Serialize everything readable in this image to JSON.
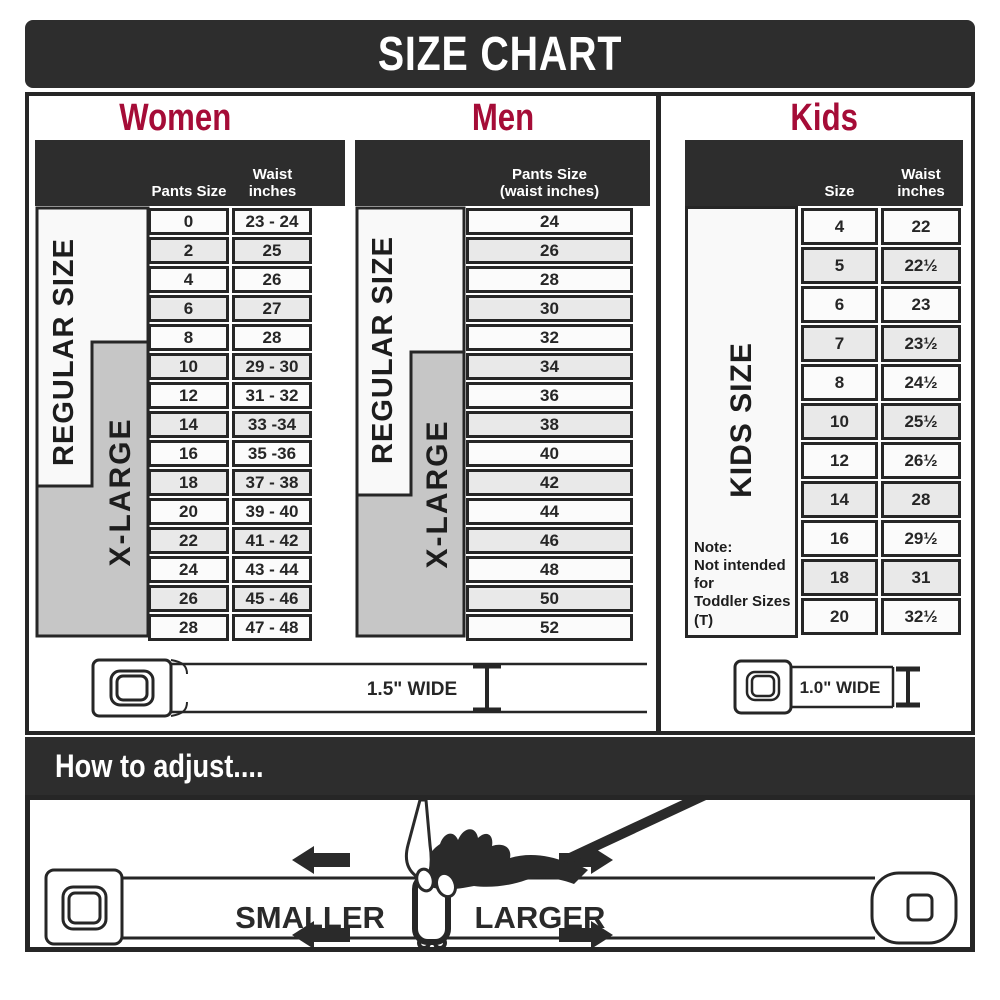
{
  "title": "SIZE CHART",
  "accent_color": "#a50c37",
  "dark_color": "#2d2d2d",
  "sections": {
    "women": {
      "title": "Women",
      "col1_header": "Pants Size",
      "col2_header_line1": "Waist",
      "col2_header_line2": "inches",
      "regular_label": "REGULAR SIZE",
      "xlarge_label": "X-LARGE",
      "rows": [
        {
          "size": "0",
          "waist": "23 - 24"
        },
        {
          "size": "2",
          "waist": "25"
        },
        {
          "size": "4",
          "waist": "26"
        },
        {
          "size": "6",
          "waist": "27"
        },
        {
          "size": "8",
          "waist": "28"
        },
        {
          "size": "10",
          "waist": "29 - 30"
        },
        {
          "size": "12",
          "waist": "31 - 32"
        },
        {
          "size": "14",
          "waist": "33 -34"
        },
        {
          "size": "16",
          "waist": "35 -36"
        },
        {
          "size": "18",
          "waist": "37 - 38"
        },
        {
          "size": "20",
          "waist": "39 - 40"
        },
        {
          "size": "22",
          "waist": "41 - 42"
        },
        {
          "size": "24",
          "waist": "43 - 44"
        },
        {
          "size": "26",
          "waist": "45 - 46"
        },
        {
          "size": "28",
          "waist": "47 - 48"
        }
      ]
    },
    "men": {
      "title": "Men",
      "col_header_line1": "Pants Size",
      "col_header_line2": "(waist inches)",
      "regular_label": "REGULAR SIZE",
      "xlarge_label": "X-LARGE",
      "rows": [
        "24",
        "26",
        "28",
        "30",
        "32",
        "34",
        "36",
        "38",
        "40",
        "42",
        "44",
        "46",
        "48",
        "50",
        "52"
      ]
    },
    "kids": {
      "title": "Kids",
      "col1_header": "Size",
      "col2_header_line1": "Waist",
      "col2_header_line2": "inches",
      "label": "KIDS SIZE",
      "note_line1": "Note:",
      "note_line2": "Not intended for",
      "note_line3": "Toddler Sizes (T)",
      "rows": [
        {
          "size": "4",
          "waist": "22"
        },
        {
          "size": "5",
          "waist": "22½"
        },
        {
          "size": "6",
          "waist": "23"
        },
        {
          "size": "7",
          "waist": "23½"
        },
        {
          "size": "8",
          "waist": "24½"
        },
        {
          "size": "10",
          "waist": "25½"
        },
        {
          "size": "12",
          "waist": "26½"
        },
        {
          "size": "14",
          "waist": "28"
        },
        {
          "size": "16",
          "waist": "29½"
        },
        {
          "size": "18",
          "waist": "31"
        },
        {
          "size": "20",
          "waist": "32½"
        }
      ]
    }
  },
  "belts": {
    "adult_width_label": "1.5\" WIDE",
    "kids_width_label": "1.0\" WIDE"
  },
  "adjust": {
    "title": "How to adjust....",
    "smaller_label": "SMALLER",
    "larger_label": "LARGER"
  }
}
